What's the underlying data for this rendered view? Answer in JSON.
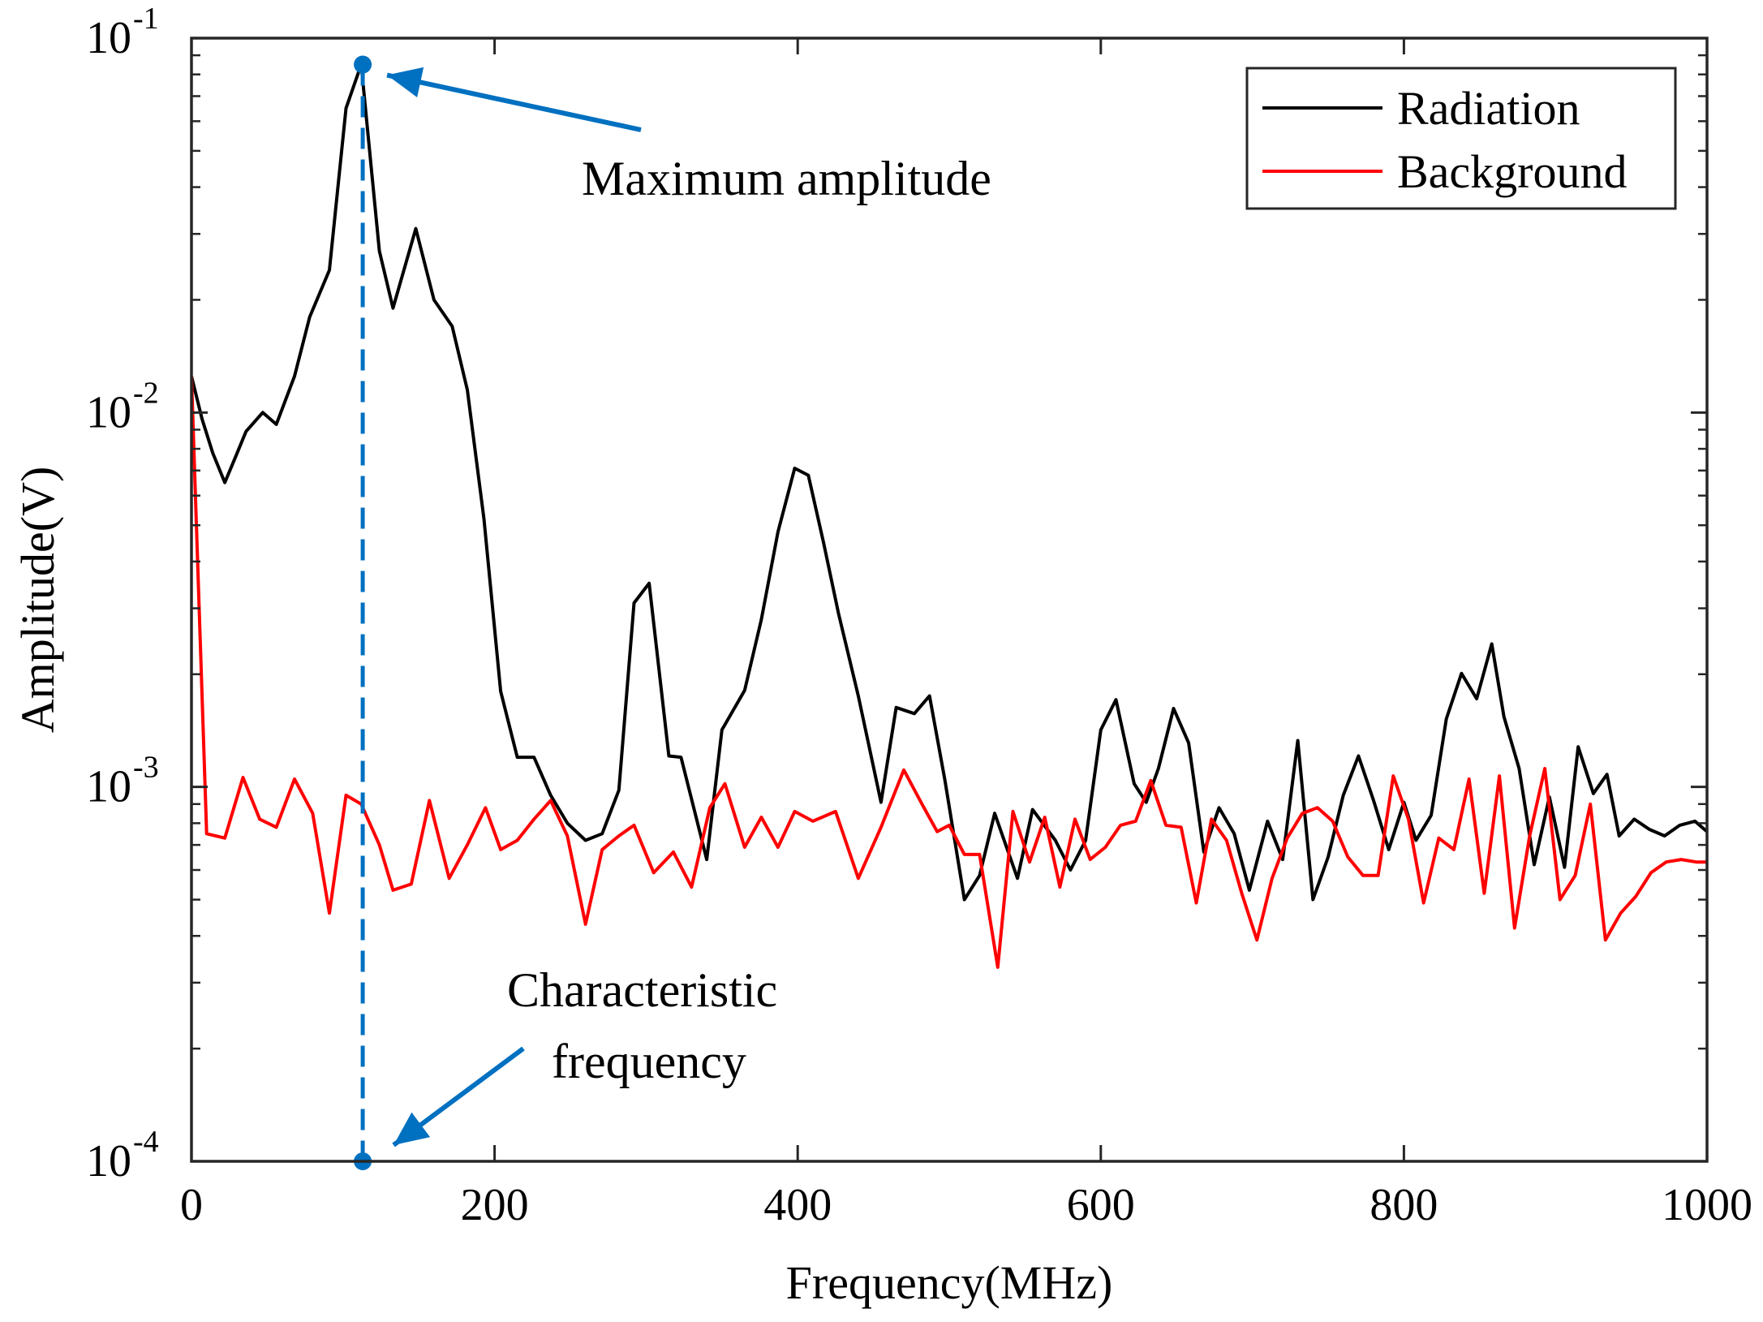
{
  "chart_data": {
    "type": "line",
    "title": "",
    "xlabel": "Frequency(MHz)",
    "ylabel": "Amplitude(V)",
    "xlim": [
      0,
      1000
    ],
    "ylim": [
      0.0001,
      0.1
    ],
    "yscale": "log",
    "x_ticks": [
      0,
      200,
      400,
      600,
      800,
      1000
    ],
    "x_tick_labels": [
      "0",
      "200",
      "400",
      "600",
      "800",
      "1000"
    ],
    "y_ticks": [
      0.0001,
      0.001,
      0.01,
      0.1
    ],
    "y_tick_labels": [
      {
        "base": "10",
        "exp": "-4"
      },
      {
        "base": "10",
        "exp": "-3"
      },
      {
        "base": "10",
        "exp": "-2"
      },
      {
        "base": "10",
        "exp": "-1"
      }
    ],
    "grid": false,
    "legend_position": "top-right",
    "series": [
      {
        "name": "Radiation",
        "color": "#000000",
        "x": [
          0,
          7,
          14,
          22,
          29,
          36,
          47,
          56,
          68,
          78,
          91,
          102,
          112,
          124,
          133,
          148,
          160,
          172,
          182,
          193,
          204,
          215,
          226,
          237,
          248,
          260,
          271,
          282,
          292,
          302,
          315,
          323,
          340,
          350,
          365,
          376,
          387,
          398,
          407,
          417,
          427,
          440,
          455,
          465,
          477,
          487,
          497,
          510,
          520,
          530,
          545,
          555,
          570,
          580,
          590,
          600,
          610,
          622,
          630,
          638,
          648,
          658,
          668,
          678,
          688,
          698,
          710,
          720,
          730,
          740,
          750,
          760,
          770,
          780,
          790,
          800,
          808,
          818,
          828,
          838,
          848,
          858,
          866,
          876,
          886,
          896,
          906,
          915,
          925,
          934,
          942,
          952,
          962,
          972,
          982,
          992,
          1000
        ],
        "y": [
          0.0125,
          0.0096,
          0.0078,
          0.0065,
          0.0076,
          0.0089,
          0.01,
          0.0093,
          0.0125,
          0.018,
          0.024,
          0.065,
          0.085,
          0.027,
          0.019,
          0.031,
          0.02,
          0.017,
          0.0115,
          0.0052,
          0.0018,
          0.0012,
          0.0012,
          0.00095,
          0.0008,
          0.00072,
          0.00075,
          0.00098,
          0.0031,
          0.0035,
          0.00121,
          0.0012,
          0.00064,
          0.00142,
          0.00181,
          0.0028,
          0.0048,
          0.0071,
          0.0068,
          0.0045,
          0.0029,
          0.00175,
          0.00091,
          0.00163,
          0.00157,
          0.00175,
          0.00105,
          0.0005,
          0.00058,
          0.00085,
          0.00057,
          0.00087,
          0.00072,
          0.0006,
          0.00072,
          0.00142,
          0.00171,
          0.00102,
          0.00091,
          0.00112,
          0.00162,
          0.00131,
          0.00067,
          0.00088,
          0.00075,
          0.00053,
          0.00081,
          0.00064,
          0.00133,
          0.0005,
          0.00065,
          0.00095,
          0.00121,
          0.00092,
          0.00068,
          0.00091,
          0.00072,
          0.00084,
          0.00152,
          0.00201,
          0.00172,
          0.00241,
          0.00154,
          0.00112,
          0.00062,
          0.00094,
          0.00061,
          0.00128,
          0.00096,
          0.00108,
          0.00074,
          0.00082,
          0.00077,
          0.00074,
          0.00079,
          0.00081,
          0.00076
        ]
      },
      {
        "name": "Background",
        "color": "#ff0000",
        "x": [
          0,
          10,
          22,
          34,
          45,
          56,
          68,
          80,
          91,
          102,
          112,
          124,
          133,
          145,
          157,
          170,
          182,
          194,
          204,
          215,
          226,
          237,
          248,
          260,
          271,
          282,
          292,
          305,
          318,
          330,
          342,
          352,
          365,
          376,
          387,
          398,
          410,
          425,
          440,
          455,
          470,
          482,
          492,
          500,
          510,
          520,
          532,
          542,
          553,
          563,
          573,
          583,
          593,
          603,
          613,
          623,
          633,
          643,
          653,
          663,
          673,
          683,
          693,
          703,
          713,
          723,
          733,
          743,
          753,
          763,
          773,
          783,
          793,
          803,
          813,
          823,
          833,
          843,
          853,
          863,
          873,
          883,
          893,
          903,
          913,
          923,
          933,
          943,
          953,
          963,
          973,
          983,
          993,
          1000
        ],
        "y": [
          0.0125,
          0.00075,
          0.00073,
          0.00106,
          0.00082,
          0.00078,
          0.00105,
          0.00085,
          0.00046,
          0.00095,
          0.0009,
          0.0007,
          0.00053,
          0.00055,
          0.00092,
          0.00057,
          0.0007,
          0.00088,
          0.00068,
          0.00072,
          0.00082,
          0.00092,
          0.00074,
          0.00043,
          0.00068,
          0.00074,
          0.00079,
          0.00059,
          0.00067,
          0.00054,
          0.00088,
          0.00102,
          0.00069,
          0.00083,
          0.00069,
          0.00086,
          0.00081,
          0.00086,
          0.00057,
          0.00078,
          0.00111,
          0.0009,
          0.00076,
          0.00079,
          0.00066,
          0.00066,
          0.00033,
          0.00086,
          0.00063,
          0.00083,
          0.00054,
          0.00082,
          0.00064,
          0.00069,
          0.00079,
          0.00081,
          0.00104,
          0.00079,
          0.00078,
          0.00049,
          0.00082,
          0.00072,
          0.00052,
          0.00039,
          0.00057,
          0.00073,
          0.00085,
          0.00088,
          0.00081,
          0.00065,
          0.00058,
          0.00058,
          0.00107,
          0.00082,
          0.00049,
          0.00073,
          0.00068,
          0.00105,
          0.00052,
          0.00107,
          0.00042,
          0.00074,
          0.00112,
          0.0005,
          0.00058,
          0.0009,
          0.00039,
          0.00046,
          0.00051,
          0.00059,
          0.00063,
          0.00064,
          0.00063,
          0.00063
        ]
      }
    ],
    "annotations": [
      {
        "text": "Maximum amplitude",
        "point": {
          "x": 113,
          "y": 0.085
        }
      },
      {
        "text_lines": [
          "Characteristic",
          "frequency"
        ],
        "point": {
          "x": 113,
          "y": 0.0001
        }
      }
    ],
    "annotation_color": "#0070c0"
  }
}
